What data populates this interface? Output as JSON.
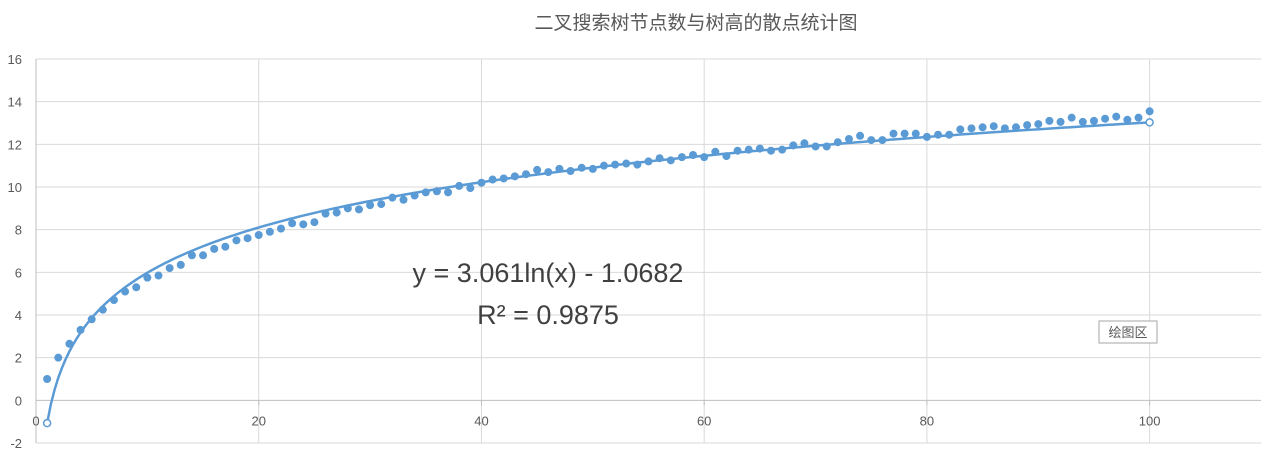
{
  "chart_data": {
    "type": "scatter",
    "title": "二叉搜索树节点数与树高的散点统计图",
    "xlabel": "",
    "ylabel": "",
    "xlim": [
      0,
      110
    ],
    "ylim": [
      -2,
      16
    ],
    "x_ticks": [
      0,
      20,
      40,
      60,
      80,
      100
    ],
    "y_ticks": [
      -2,
      0,
      2,
      4,
      6,
      8,
      10,
      12,
      14,
      16
    ],
    "grid": true,
    "series": [
      {
        "type": "scatter",
        "color": "#5B9BD5",
        "x": [
          1,
          2,
          3,
          4,
          5,
          6,
          7,
          8,
          9,
          10,
          11,
          12,
          13,
          14,
          15,
          16,
          17,
          18,
          19,
          20,
          21,
          22,
          23,
          24,
          25,
          26,
          27,
          28,
          29,
          30,
          31,
          32,
          33,
          34,
          35,
          36,
          37,
          38,
          39,
          40,
          41,
          42,
          43,
          44,
          45,
          46,
          47,
          48,
          49,
          50,
          51,
          52,
          53,
          54,
          55,
          56,
          57,
          58,
          59,
          60,
          61,
          62,
          63,
          64,
          65,
          66,
          67,
          68,
          69,
          70,
          71,
          72,
          73,
          74,
          75,
          76,
          77,
          78,
          79,
          80,
          81,
          82,
          83,
          84,
          85,
          86,
          87,
          88,
          89,
          90,
          91,
          92,
          93,
          94,
          95,
          96,
          97,
          98,
          99,
          100
        ],
        "y": [
          1.0,
          2.0,
          2.65,
          3.3,
          3.8,
          4.25,
          4.7,
          5.1,
          5.3,
          5.75,
          5.85,
          6.2,
          6.35,
          6.8,
          6.8,
          7.1,
          7.2,
          7.5,
          7.6,
          7.75,
          7.9,
          8.05,
          8.3,
          8.25,
          8.35,
          8.75,
          8.8,
          9.0,
          8.95,
          9.15,
          9.2,
          9.5,
          9.4,
          9.6,
          9.75,
          9.8,
          9.75,
          10.05,
          9.95,
          10.2,
          10.35,
          10.4,
          10.5,
          10.6,
          10.8,
          10.7,
          10.85,
          10.75,
          10.9,
          10.85,
          11.0,
          11.05,
          11.1,
          11.05,
          11.2,
          11.35,
          11.25,
          11.4,
          11.5,
          11.4,
          11.65,
          11.45,
          11.7,
          11.75,
          11.8,
          11.7,
          11.75,
          11.95,
          12.05,
          11.9,
          11.9,
          12.1,
          12.25,
          12.4,
          12.2,
          12.2,
          12.5,
          12.5,
          12.5,
          12.35,
          12.45,
          12.45,
          12.7,
          12.75,
          12.8,
          12.85,
          12.75,
          12.8,
          12.9,
          12.95,
          13.1,
          13.05,
          13.25,
          13.05,
          13.1,
          13.2,
          13.3,
          13.15,
          13.25,
          13.55
        ]
      },
      {
        "type": "trendline",
        "color": "#5B9BD5",
        "fit": "logarithmic",
        "coef_a": 3.061,
        "coef_b": -1.0682,
        "x_range": [
          1,
          100
        ]
      }
    ],
    "annotations": {
      "equation": "y = 3.061ln(x) - 1.0682",
      "r_squared": "R² = 0.9875"
    }
  },
  "tooltip": {
    "label": "绘图区"
  }
}
